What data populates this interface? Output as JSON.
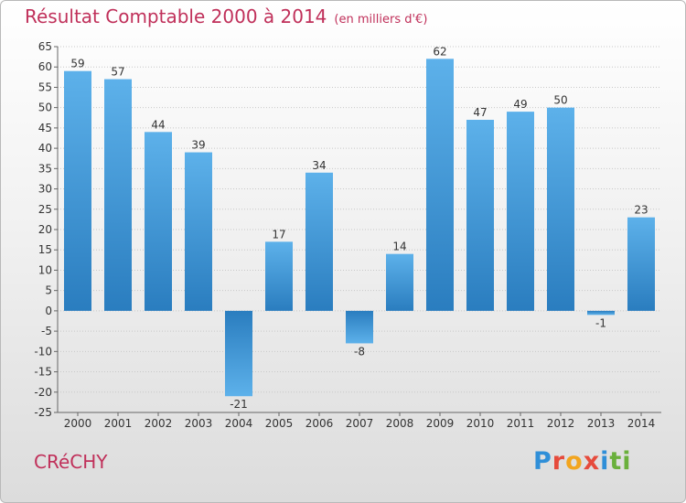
{
  "header": {
    "title": "Résultat Comptable 2000 à 2014",
    "unit": "(en milliers d'€)"
  },
  "footer": {
    "commune": "CRéCHY",
    "logo_letters": [
      "P",
      "r",
      "o",
      "x",
      "i",
      "t",
      "i"
    ],
    "logo_colors": [
      "#2f8fd8",
      "#e64b3c",
      "#f2a51f",
      "#e64b3c",
      "#2f8fd8",
      "#6ab03c",
      "#6ab03c"
    ]
  },
  "colors": {
    "title": "#c0305a",
    "bar_light": "#5db1ea",
    "bar_dark": "#2a7dbf",
    "grid": "#c8c8c8",
    "axis": "#666666"
  },
  "chart_data": {
    "type": "bar",
    "title": "Résultat Comptable 2000 à 2014",
    "ylabel": "(en milliers d'€)",
    "xlabel": "",
    "categories": [
      "2000",
      "2001",
      "2002",
      "2003",
      "2004",
      "2005",
      "2006",
      "2007",
      "2008",
      "2009",
      "2010",
      "2011",
      "2012",
      "2013",
      "2014"
    ],
    "values": [
      59,
      57,
      44,
      39,
      -21,
      17,
      34,
      -8,
      14,
      62,
      47,
      49,
      50,
      -1,
      23
    ],
    "ylim": [
      -25,
      65
    ],
    "ytick_step": 5,
    "grid": true
  }
}
